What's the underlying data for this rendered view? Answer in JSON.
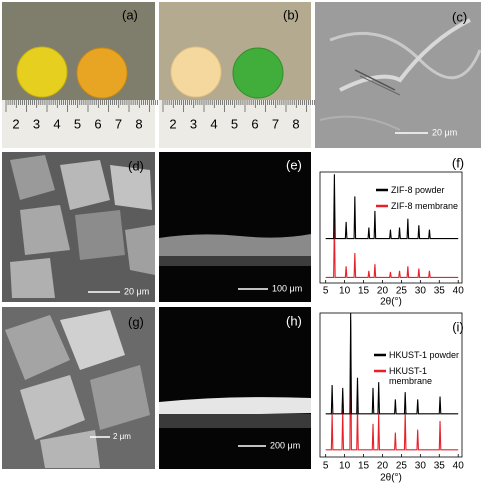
{
  "panels": [
    {
      "label": "(a)",
      "ruler": [
        2,
        3,
        4,
        5,
        6,
        7,
        8
      ]
    },
    {
      "label": "(b)",
      "ruler": [
        2,
        3,
        4,
        5,
        6,
        7,
        8
      ]
    },
    {
      "label": "(c)",
      "scale": "20 μm"
    },
    {
      "label": "(d)",
      "scale": "20 μm"
    },
    {
      "label": "(e)",
      "scale": "100 μm"
    },
    {
      "label": "(g)",
      "scale": "2 μm"
    },
    {
      "label": "(h)",
      "scale": "200 μm"
    }
  ],
  "chart_data": [
    {
      "type": "line",
      "label": "(f)",
      "x_label": "2θ(°)",
      "xlim": [
        3.5,
        41
      ],
      "xticks": [
        5,
        10,
        15,
        20,
        25,
        30,
        35,
        40
      ],
      "ylim": [
        0,
        100
      ],
      "x": [
        5,
        7.1,
        7.3,
        7.5,
        10.2,
        10.4,
        10.6,
        12.5,
        12.7,
        12.9,
        16.2,
        16.4,
        16.6,
        17.8,
        18.0,
        18.2,
        21.9,
        22.1,
        22.3,
        24.3,
        24.5,
        24.7,
        26.5,
        26.7,
        26.9,
        29.4,
        29.6,
        29.8,
        32.2,
        32.4,
        32.6,
        40
      ],
      "series": [
        {
          "name": "ZIF-8 powder",
          "color": "#000000",
          "values": [
            40,
            40,
            98,
            40,
            40,
            55,
            40,
            40,
            78,
            40,
            40,
            50,
            40,
            40,
            65,
            40,
            40,
            48,
            40,
            40,
            50,
            40,
            40,
            58,
            40,
            40,
            52,
            40,
            40,
            48,
            40,
            40
          ]
        },
        {
          "name": "ZIF-8 membrane",
          "color": "#e8202a",
          "values": [
            5,
            5,
            57,
            5,
            5,
            15,
            5,
            5,
            27,
            5,
            5,
            11,
            5,
            5,
            17,
            5,
            5,
            10,
            5,
            5,
            11,
            5,
            5,
            15,
            5,
            5,
            13,
            5,
            5,
            11,
            5,
            5
          ]
        }
      ]
    },
    {
      "type": "line",
      "label": "(i)",
      "x_label": "2θ(°)",
      "xlim": [
        3.5,
        41
      ],
      "xticks": [
        5,
        10,
        15,
        20,
        25,
        30,
        35,
        40
      ],
      "ylim": [
        0,
        100
      ],
      "x": [
        5,
        6.5,
        6.7,
        6.9,
        9.3,
        9.5,
        9.7,
        11.4,
        11.6,
        11.8,
        13.2,
        13.4,
        13.6,
        17.3,
        17.5,
        17.7,
        18.8,
        19.0,
        19.2,
        23.2,
        23.4,
        23.6,
        25.8,
        26.0,
        26.2,
        29.1,
        29.3,
        29.5,
        35.0,
        35.2,
        35.4,
        40
      ],
      "series": [
        {
          "name": "HKUST-1 powder",
          "color": "#000000",
          "values": [
            30,
            30,
            50,
            30,
            30,
            48,
            30,
            30,
            100,
            30,
            30,
            55,
            30,
            30,
            48,
            30,
            30,
            52,
            30,
            30,
            40,
            30,
            30,
            45,
            30,
            30,
            40,
            30,
            30,
            42,
            30,
            30
          ]
        },
        {
          "name": "HKUST-1 membrane",
          "color": "#e8202a",
          "values": [
            5,
            5,
            30,
            5,
            5,
            33,
            5,
            5,
            95,
            5,
            5,
            35,
            5,
            5,
            23,
            5,
            5,
            30,
            5,
            5,
            17,
            5,
            5,
            31,
            5,
            5,
            19,
            5,
            5,
            25,
            5,
            5
          ]
        }
      ]
    }
  ]
}
